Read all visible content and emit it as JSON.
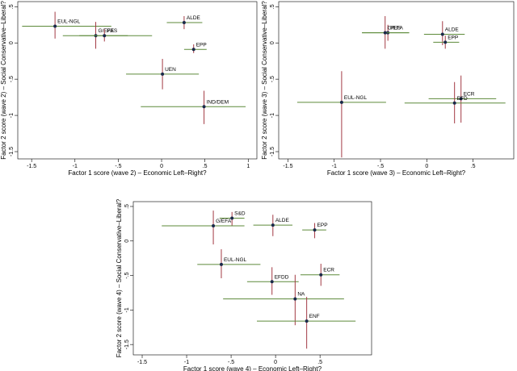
{
  "chart_data": [
    {
      "type": "scatter",
      "xlabel": "Factor 1 score (wave 2) – Economic Left–Right?",
      "ylabel": "Factor 2 score (wave 2) – Social Conservative–Liberal?",
      "labels": [
        "EUL-NGL",
        "G/EFA",
        "PES",
        "ALDE",
        "EPP",
        "UEN",
        "IND/DEM"
      ],
      "x": [
        -1.23,
        -0.76,
        -0.66,
        0.26,
        0.37,
        0.01,
        0.49
      ],
      "y": [
        0.23,
        0.1,
        0.1,
        0.28,
        -0.09,
        -0.43,
        -0.88
      ],
      "x_low": [
        -1.61,
        -1.14,
        -0.95,
        0.06,
        0.26,
        -0.41,
        -0.24
      ],
      "x_high": [
        -0.58,
        -0.39,
        -0.11,
        0.47,
        0.52,
        0.43,
        0.97
      ],
      "y_low": [
        0.06,
        -0.08,
        0.02,
        0.19,
        -0.14,
        -0.64,
        -1.12
      ],
      "y_high": [
        0.43,
        0.29,
        0.19,
        0.37,
        -0.02,
        -0.22,
        -0.66
      ],
      "xlim": [
        -1.66,
        1.1
      ],
      "ylim": [
        -1.6,
        0.57
      ],
      "xticks": [
        {
          "value": -1.5,
          "label": "-1.5"
        },
        -1,
        {
          "value": -0.5,
          "label": "-.5"
        },
        0,
        {
          "value": 0.5,
          "label": ".5"
        },
        1
      ],
      "yticks": [
        {
          "value": 0.5,
          "label": ".5"
        },
        0,
        {
          "value": -0.5,
          "label": "-.5"
        },
        -1,
        {
          "value": -1.5,
          "label": "-1.5"
        }
      ],
      "point_color": "#1a2a4a",
      "xerr_color": "#5d8a3a",
      "yerr_color": "#a33a44",
      "label_color": "#1a476f"
    },
    {
      "type": "scatter",
      "xlabel": "Factor 1 score (wave 3) – Economic Left–Right?",
      "ylabel": "Factor 2 score (wave 3) – Social Conservative–Liberal?",
      "labels": [
        "PES",
        "G/EFA",
        "ALDE",
        "EPP",
        "EUL-NGL",
        "ECR",
        "EFD"
      ],
      "x": [
        -0.42,
        -0.45,
        0.17,
        0.2,
        -0.92,
        0.37,
        0.3
      ],
      "y": [
        0.14,
        0.14,
        0.12,
        0.01,
        -0.82,
        -0.77,
        -0.83
      ],
      "x_low": [
        -0.7,
        -0.7,
        -0.03,
        0.07,
        -1.4,
        0.02,
        -0.24
      ],
      "x_high": [
        -0.19,
        -0.19,
        0.41,
        0.35,
        -0.44,
        0.75,
        0.85
      ],
      "y_low": [
        0.03,
        -0.08,
        -0.03,
        -0.08,
        -1.58,
        -1.1,
        -1.11
      ],
      "y_high": [
        0.25,
        0.37,
        0.3,
        0.1,
        -0.39,
        -0.45,
        -0.54
      ],
      "xlim": [
        -1.6,
        0.94
      ],
      "ylim": [
        -1.6,
        0.57
      ],
      "xticks": [
        {
          "value": -1.5,
          "label": "-1.5"
        },
        -1,
        {
          "value": -0.5,
          "label": "-.5"
        },
        0,
        {
          "value": 0.5,
          "label": ".5"
        }
      ],
      "yticks": [
        {
          "value": 0.5,
          "label": ".5"
        },
        0,
        {
          "value": -0.5,
          "label": "-.5"
        },
        -1,
        {
          "value": -1.5,
          "label": "-1.5"
        }
      ],
      "point_color": "#1a2a4a",
      "xerr_color": "#5d8a3a",
      "yerr_color": "#a33a44",
      "label_color": "#1a476f"
    },
    {
      "type": "scatter",
      "xlabel": "Factor 1 score (wave 4) – Economic Left–Right?",
      "ylabel": "Factor 2 score (wave 4) – Social Conservative–Liberal?",
      "labels": [
        "S&D",
        "G/EFA",
        "ALDE",
        "EPP",
        "EUL-NGL",
        "ECR",
        "EFDD",
        "NA",
        "ENF"
      ],
      "x": [
        -0.49,
        -0.7,
        -0.03,
        0.44,
        -0.61,
        0.51,
        -0.04,
        0.22,
        0.35
      ],
      "y": [
        0.33,
        0.22,
        0.23,
        0.16,
        -0.34,
        -0.49,
        -0.59,
        -0.84,
        -1.16
      ],
      "x_low": [
        -0.63,
        -1.28,
        -0.25,
        0.3,
        -0.88,
        0.28,
        -0.32,
        -0.59,
        -0.21
      ],
      "x_high": [
        -0.35,
        -0.35,
        0.19,
        0.57,
        -0.17,
        0.72,
        0.26,
        0.77,
        0.9
      ],
      "y_low": [
        0.22,
        -0.05,
        0.07,
        0.04,
        -0.54,
        -0.65,
        -0.78,
        -1.22,
        -1.56
      ],
      "y_high": [
        0.42,
        0.44,
        0.38,
        0.26,
        -0.12,
        -0.33,
        -0.38,
        -0.49,
        -0.81
      ],
      "xlim": [
        -1.6,
        1.08
      ],
      "ylim": [
        -1.65,
        0.57
      ],
      "xticks": [
        {
          "value": -1.5,
          "label": "-1.5"
        },
        -1,
        {
          "value": -0.5,
          "label": "-.5"
        },
        0,
        {
          "value": 0.5,
          "label": ".5"
        }
      ],
      "yticks": [
        {
          "value": 0.5,
          "label": ".5"
        },
        0,
        {
          "value": -0.5,
          "label": "-.5"
        },
        -1,
        {
          "value": -1.5,
          "label": "-1.5"
        }
      ],
      "point_color": "#1a2a4a",
      "xerr_color": "#5d8a3a",
      "yerr_color": "#a33a44",
      "label_color": "#1a476f"
    }
  ]
}
